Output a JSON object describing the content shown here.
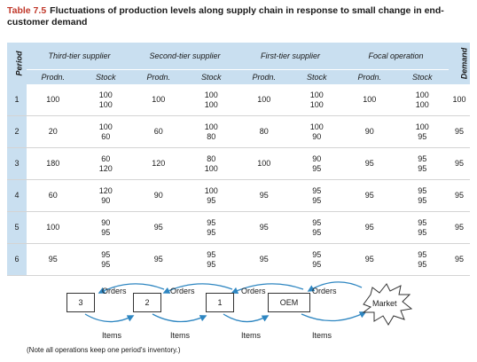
{
  "title": {
    "number": "Table 7.5",
    "text": "Fluctuations of production levels along supply chain in response to small change in end-customer demand"
  },
  "table": {
    "period_header": "Period",
    "demand_header": "Demand",
    "groups": [
      "Third-tier supplier",
      "Second-tier supplier",
      "First-tier supplier",
      "Focal operation"
    ],
    "subheaders": [
      "Prodn.",
      "Stock",
      "Prodn.",
      "Stock",
      "Prodn.",
      "Stock",
      "Prodn.",
      "Stock"
    ],
    "rows": [
      {
        "period": "1",
        "cells": [
          [
            "100"
          ],
          [
            "100",
            "100"
          ],
          [
            "100"
          ],
          [
            "100",
            "100"
          ],
          [
            "100"
          ],
          [
            "100",
            "100"
          ],
          [
            "100"
          ],
          [
            "100",
            "100"
          ]
        ],
        "demand": "100"
      },
      {
        "period": "2",
        "cells": [
          [
            "20"
          ],
          [
            "100",
            "60"
          ],
          [
            "60"
          ],
          [
            "100",
            "80"
          ],
          [
            "80"
          ],
          [
            "100",
            "90"
          ],
          [
            "90"
          ],
          [
            "100",
            "95"
          ]
        ],
        "demand": "95"
      },
      {
        "period": "3",
        "cells": [
          [
            "180"
          ],
          [
            "60",
            "120"
          ],
          [
            "120"
          ],
          [
            "80",
            "100"
          ],
          [
            "100"
          ],
          [
            "90",
            "95"
          ],
          [
            "95"
          ],
          [
            "95",
            "95"
          ]
        ],
        "demand": "95"
      },
      {
        "period": "4",
        "cells": [
          [
            "60"
          ],
          [
            "120",
            "90"
          ],
          [
            "90"
          ],
          [
            "100",
            "95"
          ],
          [
            "95"
          ],
          [
            "95",
            "95"
          ],
          [
            "95"
          ],
          [
            "95",
            "95"
          ]
        ],
        "demand": "95"
      },
      {
        "period": "5",
        "cells": [
          [
            "100"
          ],
          [
            "90",
            "95"
          ],
          [
            "95"
          ],
          [
            "95",
            "95"
          ],
          [
            "95"
          ],
          [
            "95",
            "95"
          ],
          [
            "95"
          ],
          [
            "95",
            "95"
          ]
        ],
        "demand": "95"
      },
      {
        "period": "6",
        "cells": [
          [
            "95"
          ],
          [
            "95",
            "95"
          ],
          [
            "95"
          ],
          [
            "95",
            "95"
          ],
          [
            "95"
          ],
          [
            "95",
            "95"
          ],
          [
            "95"
          ],
          [
            "95",
            "95"
          ]
        ],
        "demand": "95"
      }
    ]
  },
  "diagram": {
    "nodes": [
      "3",
      "2",
      "1",
      "OEM",
      "Market"
    ],
    "orders_label": "Orders",
    "items_label": "Items",
    "accent": "#2e86c1"
  },
  "note": "(Note all operations keep one period's inventory.)"
}
